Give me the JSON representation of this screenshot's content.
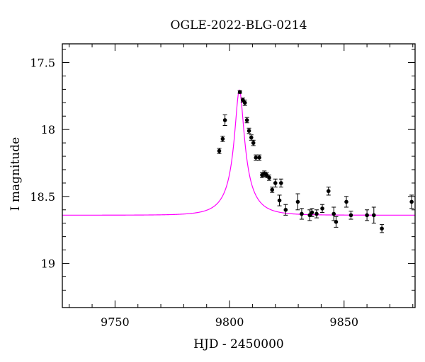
{
  "chart_data": {
    "type": "scatter",
    "title": "OGLE-2022-BLG-0214",
    "xlabel": "HJD - 2450000",
    "ylabel": "I magnitude",
    "xlim": [
      9727,
      9881
    ],
    "ylim": [
      19.33,
      17.36
    ],
    "y_inverted": true,
    "grid": false,
    "x_ticks": [
      9750,
      9800,
      9850
    ],
    "x_tick_labels": [
      "9750",
      "9800",
      "9850"
    ],
    "y_ticks": [
      17.5,
      18,
      18.5,
      19
    ],
    "y_tick_labels": [
      "17.5",
      "18",
      "18.5",
      "19"
    ],
    "model_color": "#ff00ff",
    "point_color": "#000000",
    "model": {
      "t0": 9804.3,
      "tE": 10.4,
      "u0": 0.2,
      "baseline": 18.64,
      "peak": 17.705
    },
    "series": [
      {
        "type": "errorbar",
        "x": [
          9795.5,
          9797.0,
          9798.0,
          9804.5,
          9805.8,
          9806.7,
          9807.6,
          9808.5,
          9809.5,
          9810.4,
          9811.5,
          9813.0,
          9814.2,
          9815.2,
          9816.2,
          9817.3,
          9818.6,
          9820.0,
          9821.8,
          9822.5,
          9824.5,
          9829.8,
          9831.5,
          9835.0,
          9836.0,
          9838.0,
          9840.5,
          9843.2,
          9845.5,
          9846.5,
          9851.0,
          9853.0,
          9860.0,
          9863.0,
          9866.5,
          9879.5
        ],
        "y": [
          18.16,
          18.07,
          17.93,
          17.72,
          17.78,
          17.8,
          17.93,
          18.01,
          18.06,
          18.1,
          18.21,
          18.21,
          18.34,
          18.33,
          18.34,
          18.36,
          18.45,
          18.4,
          18.53,
          18.4,
          18.6,
          18.54,
          18.63,
          18.64,
          18.62,
          18.63,
          18.59,
          18.46,
          18.63,
          18.69,
          18.54,
          18.64,
          18.64,
          18.64,
          18.74,
          18.54
        ],
        "err": [
          0.02,
          0.02,
          0.04,
          0.01,
          0.015,
          0.02,
          0.02,
          0.02,
          0.02,
          0.02,
          0.02,
          0.02,
          0.02,
          0.02,
          0.02,
          0.02,
          0.02,
          0.03,
          0.04,
          0.03,
          0.04,
          0.06,
          0.04,
          0.04,
          0.03,
          0.03,
          0.03,
          0.03,
          0.05,
          0.04,
          0.04,
          0.03,
          0.04,
          0.06,
          0.03,
          0.05
        ]
      }
    ]
  }
}
